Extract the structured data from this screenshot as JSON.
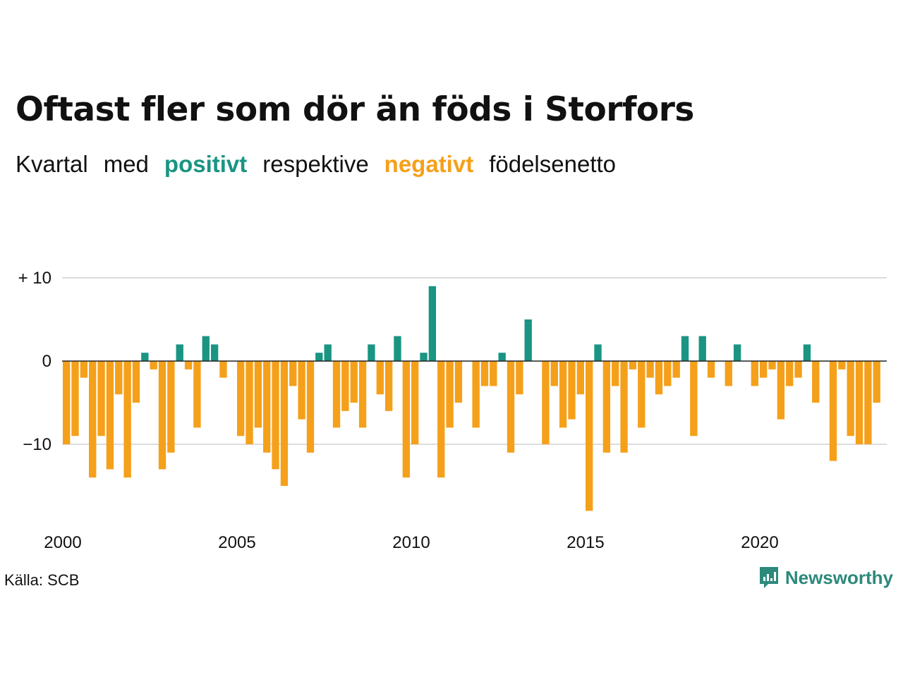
{
  "title": "Oftast fler som dör än föds i Storfors",
  "subtitle": {
    "words": [
      "Kvartal",
      "med",
      "positivt",
      "respektive",
      "negativt",
      "födelsenetto"
    ]
  },
  "colors": {
    "positive": "#1a9483",
    "negative": "#f5a01a",
    "grid": "#dddddd",
    "zero_line": "#222222",
    "brand": "#2c8a7b"
  },
  "source": "Källa: SCB",
  "brand": {
    "name": "Newsworthy",
    "icon": "newsworthy-logo-icon"
  },
  "chart_data": {
    "type": "bar",
    "title": "Oftast fler som dör än föds i Storfors",
    "subtitle": "Kvartal med positivt respektive negativt födelsenetto",
    "xlabel": "",
    "ylabel": "",
    "x_range": [
      2000,
      2023.75
    ],
    "ylim": [
      -19,
      10.5
    ],
    "y_ticks": [
      {
        "value": 10,
        "label": "+ 10"
      },
      {
        "value": 0,
        "label": "0"
      },
      {
        "value": -10,
        "label": "−10"
      }
    ],
    "x_ticks": [
      {
        "value": 2000,
        "label": "2000"
      },
      {
        "value": 2005,
        "label": "2005"
      },
      {
        "value": 2010,
        "label": "2010"
      },
      {
        "value": 2015,
        "label": "2015"
      },
      {
        "value": 2020,
        "label": "2020"
      }
    ],
    "grid": true,
    "legend": "in subtitle",
    "series": [
      {
        "frequency": "quarterly",
        "start": "2000 Q1",
        "values": [
          -10,
          -9,
          -2,
          -14,
          -9,
          -13,
          -4,
          -14,
          -5,
          1,
          -1,
          -13,
          -11,
          2,
          -1,
          -8,
          3,
          2,
          -2,
          0,
          -9,
          -10,
          -8,
          -11,
          -13,
          -15,
          -3,
          -7,
          -11,
          1,
          2,
          -8,
          -6,
          -5,
          -8,
          2,
          -4,
          -6,
          3,
          -14,
          -10,
          1,
          9,
          -14,
          -8,
          -5,
          0,
          -8,
          -3,
          -3,
          1,
          -11,
          -4,
          5,
          0,
          -10,
          -3,
          -8,
          -7,
          -4,
          -18,
          2,
          -11,
          -3,
          -11,
          -1,
          -8,
          -2,
          -4,
          -3,
          -2,
          3,
          -9,
          3,
          -2,
          0,
          -3,
          2,
          0,
          -3,
          -2,
          -1,
          -7,
          -3,
          -2,
          2,
          -5,
          0,
          -12,
          -1,
          -9,
          -10,
          -10,
          -5
        ]
      }
    ]
  }
}
